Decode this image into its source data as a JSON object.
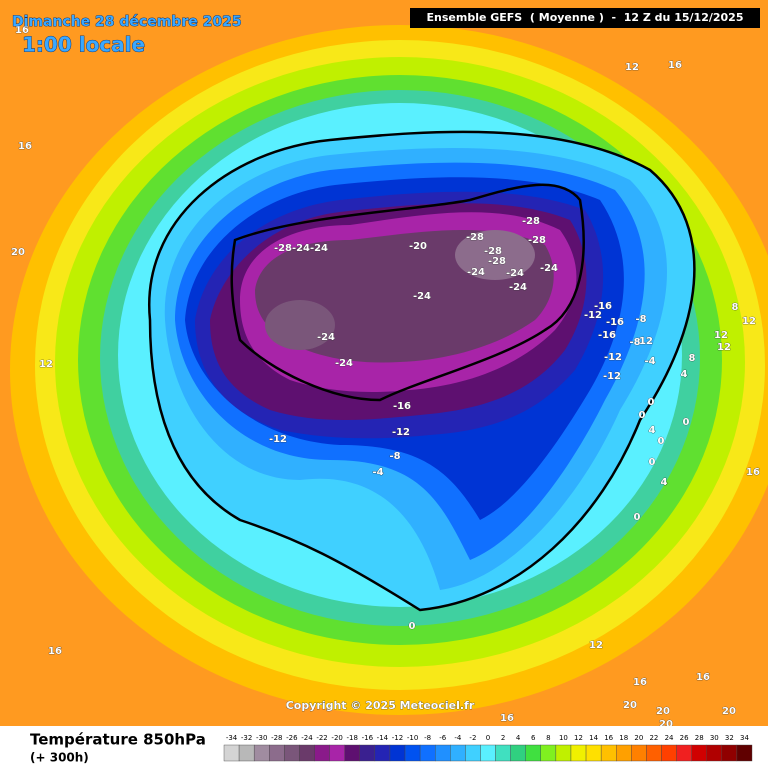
{
  "map": {
    "title_date": "Dimanche 28 décembre 2025",
    "title_time": "1:00 locale",
    "run_info": "Ensemble GEFS  ( Moyenne )  -  12 Z du 15/12/2025",
    "copyright": "Copyright © 2025 Meteociel.fr",
    "variable": "Température 850hPa",
    "lead_time": "(+ 300h)",
    "contour_labels": [
      16,
      12,
      16,
      16,
      20,
      12,
      -28,
      -24,
      -24,
      -20,
      -28,
      -28,
      -28,
      -28,
      -28,
      -24,
      -24,
      -24,
      -24,
      -24,
      -24,
      -24,
      -16,
      -12,
      -16,
      -8,
      -16,
      -8,
      12,
      -12,
      -4,
      -12,
      8,
      12,
      12,
      12,
      8,
      4,
      -16,
      -12,
      -12,
      -8,
      -4,
      0,
      0,
      0,
      4,
      0,
      0,
      4,
      0,
      16,
      0,
      12,
      16,
      16,
      16,
      20,
      20,
      20,
      20,
      16
    ],
    "colorbar": {
      "values": [
        -34,
        -32,
        -30,
        -28,
        -26,
        -24,
        -22,
        -20,
        -18,
        -16,
        -14,
        -12,
        -10,
        -8,
        -6,
        -4,
        -2,
        0,
        2,
        4,
        6,
        8,
        10,
        12,
        14,
        16,
        18,
        20,
        22,
        24,
        26,
        28,
        30,
        32,
        34
      ],
      "colors": [
        "#d4d4d4",
        "#b8b8b8",
        "#a08ca0",
        "#8c6c8c",
        "#7a567a",
        "#6a3a6a",
        "#8a1a8a",
        "#a824a8",
        "#5e1070",
        "#3a2090",
        "#2424b4",
        "#0034d4",
        "#0052f0",
        "#1070ff",
        "#2090ff",
        "#30b0ff",
        "#40d0ff",
        "#5af0ff",
        "#40e0c0",
        "#30d080",
        "#40e040",
        "#80f020",
        "#c0f000",
        "#f0f000",
        "#ffe000",
        "#ffc000",
        "#ffa000",
        "#ff8000",
        "#ff6000",
        "#ff4000",
        "#f02020",
        "#d00000",
        "#b00000",
        "#900000",
        "#600000"
      ]
    }
  }
}
